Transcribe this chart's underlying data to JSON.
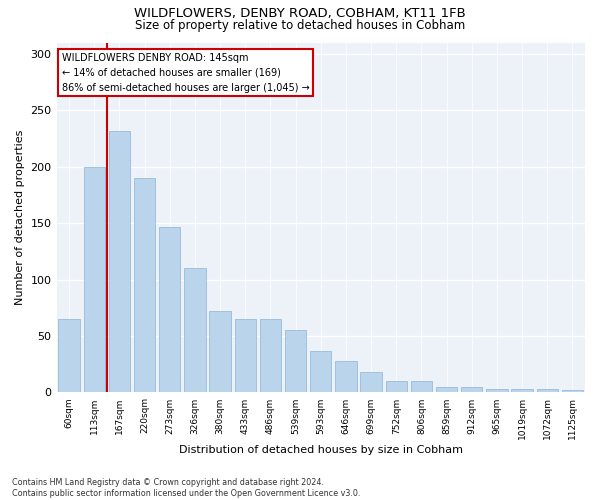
{
  "title": "WILDFLOWERS, DENBY ROAD, COBHAM, KT11 1FB",
  "subtitle": "Size of property relative to detached houses in Cobham",
  "xlabel": "Distribution of detached houses by size in Cobham",
  "ylabel": "Number of detached properties",
  "categories": [
    "60sqm",
    "113sqm",
    "167sqm",
    "220sqm",
    "273sqm",
    "326sqm",
    "380sqm",
    "433sqm",
    "486sqm",
    "539sqm",
    "593sqm",
    "646sqm",
    "699sqm",
    "752sqm",
    "806sqm",
    "859sqm",
    "912sqm",
    "965sqm",
    "1019sqm",
    "1072sqm",
    "1125sqm"
  ],
  "values": [
    65,
    200,
    232,
    190,
    147,
    110,
    72,
    65,
    65,
    55,
    37,
    28,
    18,
    10,
    10,
    5,
    5,
    3,
    3,
    3,
    2
  ],
  "bar_color": "#bad4ec",
  "bar_edgecolor": "#8ab4d8",
  "property_label": "WILDFLOWERS DENBY ROAD: 145sqm",
  "annotation_line1": "← 14% of detached houses are smaller (169)",
  "annotation_line2": "86% of semi-detached houses are larger (1,045) →",
  "annotation_box_color": "#ffffff",
  "annotation_box_edgecolor": "#cc0000",
  "vline_color": "#cc0000",
  "footer_line1": "Contains HM Land Registry data © Crown copyright and database right 2024.",
  "footer_line2": "Contains public sector information licensed under the Open Government Licence v3.0.",
  "background_color": "#edf2f9",
  "ylim": [
    0,
    310
  ],
  "yticks": [
    0,
    50,
    100,
    150,
    200,
    250,
    300
  ],
  "title_fontsize": 9.5,
  "subtitle_fontsize": 8.5,
  "ylabel_fontsize": 8,
  "xlabel_fontsize": 8,
  "tick_fontsize": 6.5,
  "footer_fontsize": 5.8,
  "annotation_fontsize": 7,
  "vline_x": 1.5
}
